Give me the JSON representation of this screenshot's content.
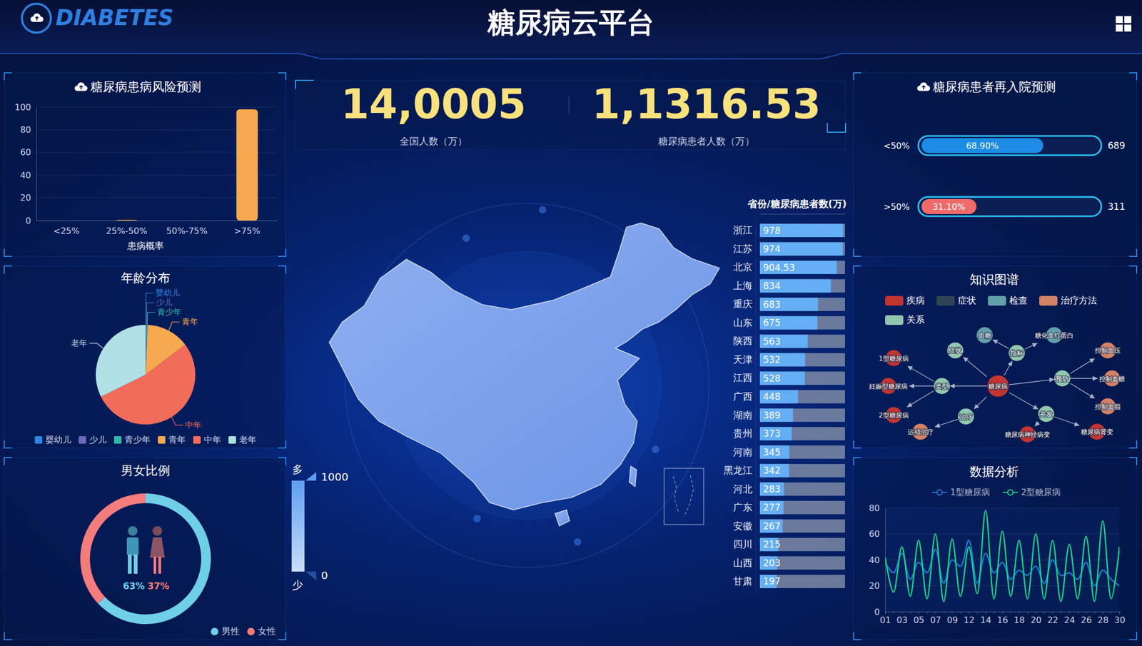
{
  "header": {
    "logo": "DIABETES",
    "title": "糖尿病云平台"
  },
  "kpis": [
    {
      "value": "14,0005",
      "label": "全国人数（万）"
    },
    {
      "value": "1,1316.53",
      "label": "糖尿病患者人数（万）"
    }
  ],
  "chart_data": [
    {
      "type": "bar",
      "title": "糖尿病患病风险预测",
      "x_label": "患病概率",
      "categories": [
        "<25%",
        "25%-50%",
        "50%-75%",
        ">75%"
      ],
      "values": [
        0,
        0.6,
        0,
        98
      ],
      "color": "#f7a94f",
      "ylim": [
        0,
        100
      ],
      "yticks": [
        0,
        20,
        40,
        60,
        80,
        100
      ],
      "grid": true
    },
    {
      "type": "pie",
      "title": "年龄分布",
      "categories": [
        "婴幼儿",
        "少儿",
        "青少年",
        "青年",
        "中年",
        "老年"
      ],
      "values": [
        0.2,
        0.2,
        0.3,
        14,
        53,
        32.3
      ],
      "colors": [
        "#2e86de",
        "#6a6bb5",
        "#36b5a8",
        "#f7a94f",
        "#f26c5a",
        "#b0e0e6"
      ],
      "legend": "bottom"
    },
    {
      "type": "donut",
      "title": "男女比例",
      "categories": [
        "男性",
        "女性"
      ],
      "values": [
        63,
        37
      ],
      "value_labels": [
        "63%",
        "37%"
      ],
      "colors": [
        "#6fcfe6",
        "#f47c7c"
      ],
      "data_labels": true,
      "legend": "bottom-right"
    },
    {
      "type": "bar",
      "title": "省份/糖尿病患者数(万)",
      "orientation": "horizontal",
      "categories": [
        "浙江",
        "江苏",
        "北京",
        "上海",
        "重庆",
        "山东",
        "陕西",
        "天津",
        "江西",
        "广西",
        "湖南",
        "贵州",
        "河南",
        "黑龙江",
        "河北",
        "广东",
        "安徽",
        "四川",
        "山西",
        "甘肃"
      ],
      "values": [
        978,
        974,
        904.53,
        834,
        683,
        675,
        563,
        532,
        528,
        448,
        389,
        373,
        345,
        342,
        283,
        277,
        267,
        215,
        203,
        197
      ],
      "color": "#64aef5",
      "xlim": [
        0,
        1000
      ],
      "tick_labels": "y",
      "data_labels": true
    },
    {
      "type": "bar",
      "title": "糖尿病患者再入院预测",
      "orientation": "horizontal",
      "categories": [
        "<50%",
        ">50%"
      ],
      "values": [
        68.9,
        31.1
      ],
      "value_labels": [
        "68.90%",
        "31.10%"
      ],
      "counts": [
        689,
        311
      ],
      "colors": [
        "#1c8ce6",
        "#f06a6a"
      ],
      "xlim": [
        0,
        100
      ],
      "tick_labels": "y",
      "data_labels": true
    },
    {
      "type": "line",
      "title": "数据分析",
      "categories": [
        "01",
        null,
        "03",
        null,
        "05",
        null,
        "07",
        null,
        "09",
        null,
        "12",
        null,
        "14",
        null,
        "16",
        null,
        "18",
        null,
        "20",
        null,
        "22",
        null,
        "24",
        null,
        "26",
        null,
        "28",
        null,
        "30"
      ],
      "series": [
        {
          "name": "1型糖尿病",
          "color": "#1a7fd6",
          "values": [
            38,
            30,
            45,
            25,
            38,
            30,
            48,
            22,
            40,
            35,
            55,
            22,
            45,
            30,
            38,
            25,
            32,
            28,
            35,
            22,
            40,
            28,
            30,
            25,
            38,
            20,
            32,
            25,
            20
          ]
        },
        {
          "name": "2型糖尿病",
          "color": "#12d68a",
          "values": [
            42,
            15,
            50,
            12,
            55,
            10,
            60,
            8,
            56,
            12,
            50,
            14,
            78,
            10,
            62,
            12,
            55,
            10,
            60,
            10,
            55,
            8,
            52,
            10,
            58,
            8,
            70,
            10,
            50
          ]
        }
      ],
      "ylim": [
        0,
        80
      ],
      "yticks": [
        0,
        20,
        40,
        60,
        80
      ],
      "grid": true,
      "legend": "top"
    }
  ],
  "map": {
    "visual_map": {
      "range": [
        0,
        1000
      ],
      "ticks": [
        0,
        1000
      ],
      "high_label": "多",
      "low_label": "少",
      "colors": [
        "#c8defa",
        "#5e9ef0"
      ]
    }
  },
  "knowledge_graph": {
    "title": "知识图谱",
    "categories": [
      {
        "name": "疾病",
        "color": "#c23531"
      },
      {
        "name": "症状",
        "color": "#2f4554"
      },
      {
        "name": "检查",
        "color": "#61a0a8"
      },
      {
        "name": "治疗方法",
        "color": "#d48265"
      },
      {
        "name": "关系",
        "color": "#91c7ae"
      }
    ],
    "nodes": [
      {
        "label": "糖尿病",
        "category": 0
      },
      {
        "label": "类型",
        "category": 4
      },
      {
        "label": "1型糖尿病",
        "category": 0
      },
      {
        "label": "妊娠型糖尿病",
        "category": 0
      },
      {
        "label": "2型糖尿病",
        "category": 0
      },
      {
        "label": "症状",
        "category": 4
      },
      {
        "label": "指标",
        "category": 4
      },
      {
        "label": "血糖",
        "category": 2
      },
      {
        "label": "糖化血红蛋白",
        "category": 2
      },
      {
        "label": "预防",
        "category": 4
      },
      {
        "label": "控制血压",
        "category": 3
      },
      {
        "label": "控制血糖",
        "category": 3
      },
      {
        "label": "控制血脂",
        "category": 3
      },
      {
        "label": "并发",
        "category": 4
      },
      {
        "label": "糖尿病肾变",
        "category": 0
      },
      {
        "label": "糖尿病神经病变",
        "category": 0
      },
      {
        "label": "治疗",
        "category": 4
      },
      {
        "label": "运动治疗",
        "category": 3
      }
    ],
    "links": [
      [
        0,
        1
      ],
      [
        1,
        2
      ],
      [
        1,
        3
      ],
      [
        1,
        4
      ],
      [
        0,
        5
      ],
      [
        0,
        6
      ],
      [
        6,
        7
      ],
      [
        6,
        8
      ],
      [
        0,
        9
      ],
      [
        9,
        10
      ],
      [
        9,
        11
      ],
      [
        9,
        12
      ],
      [
        0,
        13
      ],
      [
        13,
        14
      ],
      [
        13,
        15
      ],
      [
        0,
        16
      ],
      [
        16,
        17
      ]
    ]
  }
}
